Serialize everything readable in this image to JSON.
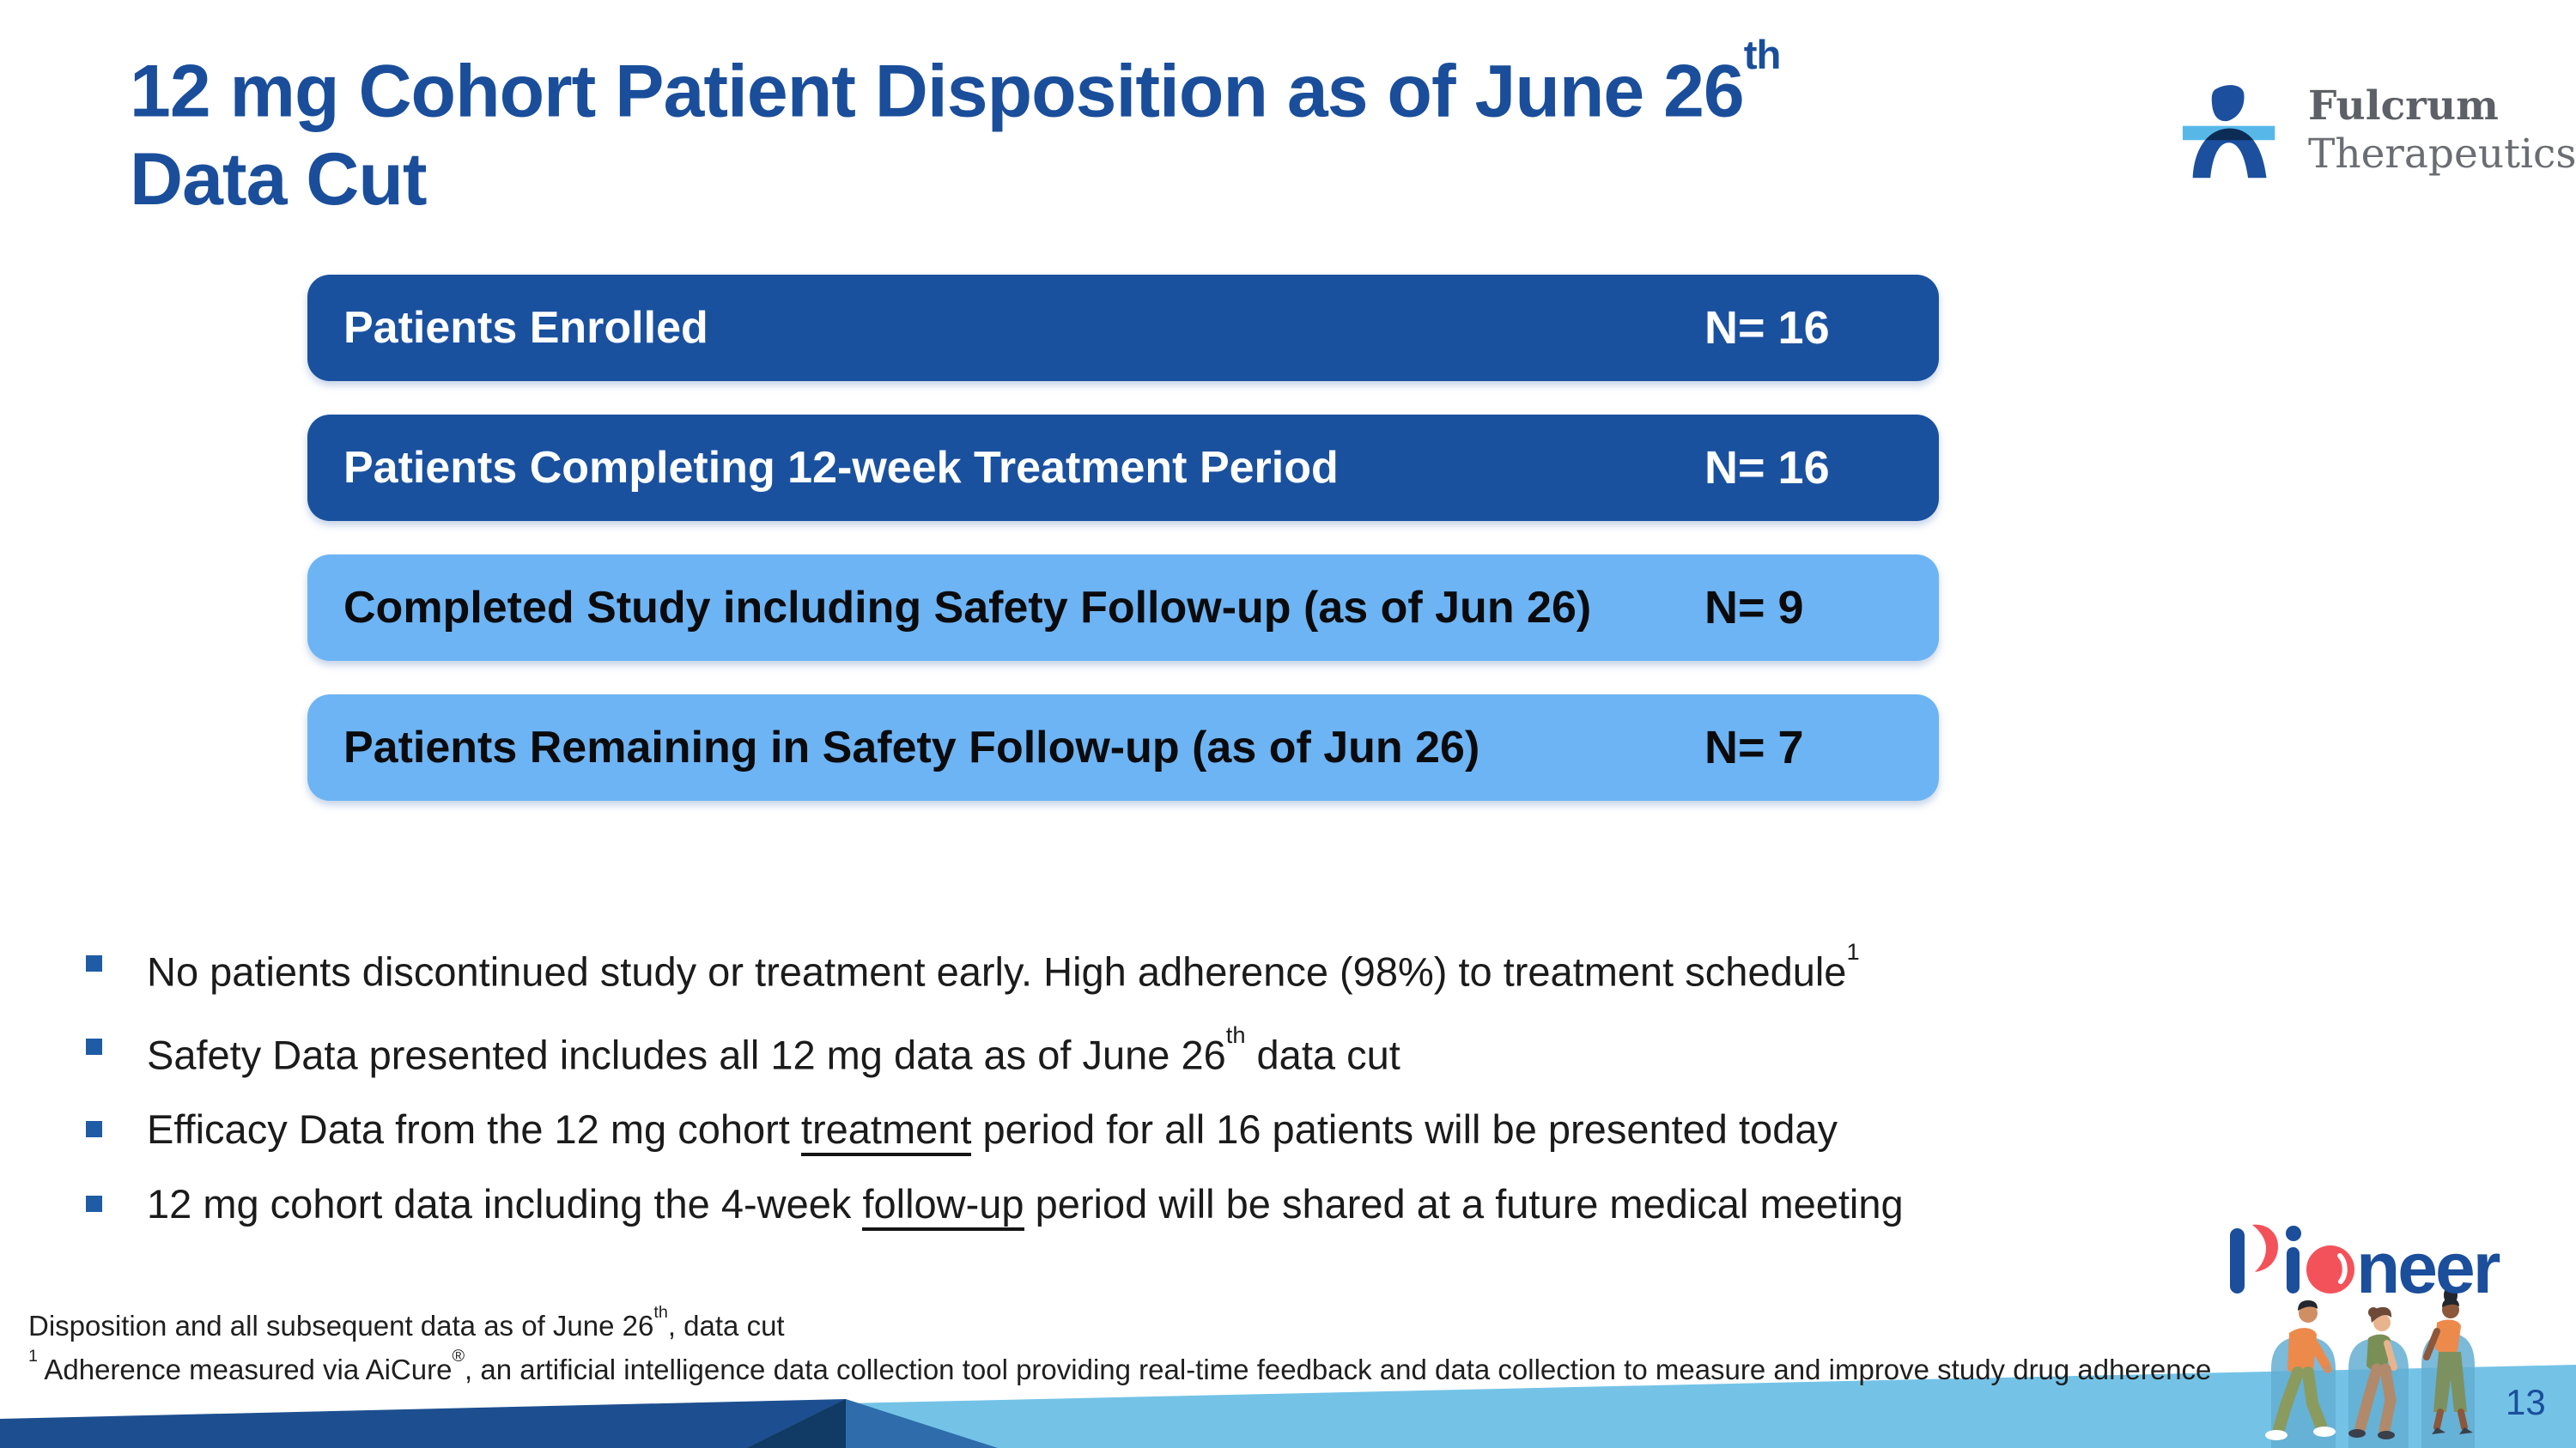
{
  "slide": {
    "title": {
      "line1": "12 mg Cohort Patient Disposition as of June 26",
      "line1_sup": "th",
      "line2": "Data Cut"
    },
    "page_number": "13"
  },
  "brand": {
    "name_line1": "Fulcrum",
    "name_line2": "Therapeutics",
    "icon": "fulcrum-figure-icon"
  },
  "pioneer": {
    "label": "Pioneer"
  },
  "disposition": {
    "type": "table",
    "rows": [
      {
        "label": "Patients Enrolled",
        "value": "N= 16",
        "emphasis": "dark"
      },
      {
        "label": "Patients Completing 12-week Treatment Period",
        "value": "N= 16",
        "emphasis": "dark"
      },
      {
        "label": "Completed Study including Safety Follow-up (as of Jun 26)",
        "value": "N= 9",
        "emphasis": "light"
      },
      {
        "label": "Patients Remaining in Safety Follow-up (as of Jun 26)",
        "value": "N= 7",
        "emphasis": "light"
      }
    ]
  },
  "bullets": [
    {
      "segments": [
        {
          "text": "No patients discontinued study or treatment early. High adherence (98%) to treatment schedule"
        },
        {
          "text": "1",
          "sup": true
        }
      ]
    },
    {
      "segments": [
        {
          "text": "Safety Data presented includes all 12 mg data as of June 26"
        },
        {
          "text": "th",
          "sup": true
        },
        {
          "text": " data cut"
        }
      ]
    },
    {
      "segments": [
        {
          "text": "Efficacy Data from the 12 mg cohort "
        },
        {
          "text": "treatment",
          "underline": true
        },
        {
          "text": " period for all 16 patients will be presented today"
        }
      ]
    },
    {
      "segments": [
        {
          "text": "12 mg cohort data including the 4-week "
        },
        {
          "text": "follow-up",
          "underline": true
        },
        {
          "text": " period will be shared at a future medical meeting"
        }
      ]
    }
  ],
  "footnotes": [
    {
      "segments": [
        {
          "text": "Disposition and all subsequent data as of June 26"
        },
        {
          "text": "th",
          "sup": true
        },
        {
          "text": ", data cut"
        }
      ]
    },
    {
      "segments": [
        {
          "text": "1",
          "sup": true
        },
        {
          "text": " Adherence measured via AiCure"
        },
        {
          "text": "®",
          "sup": true
        },
        {
          "text": ", an artificial intelligence data collection tool providing real-time feedback and data collection to measure and improve study drug adherence"
        }
      ]
    }
  ],
  "colors": {
    "title_blue": "#1a4e9b",
    "bar_dark_blue": "#1a519f",
    "bar_light_blue": "#6db4f4",
    "bar_text_light": "#ffffff",
    "bar_text_dark": "#0b0b0d",
    "bullet_square_blue": "#1f5ca6",
    "band_sky_blue": "#74c3e7",
    "band_deep_blue": "#1d4f90",
    "band_navy": "#113a64",
    "band_mid_blue": "#2f6cab",
    "pioneer_blue": "#1b4e9b",
    "pioneer_red": "#f4525b",
    "fulcrum_text_gray": "#5d6066",
    "fulcrum_icon_blue": "#1c4f9e",
    "fulcrum_icon_light_blue": "#57b8e8"
  }
}
